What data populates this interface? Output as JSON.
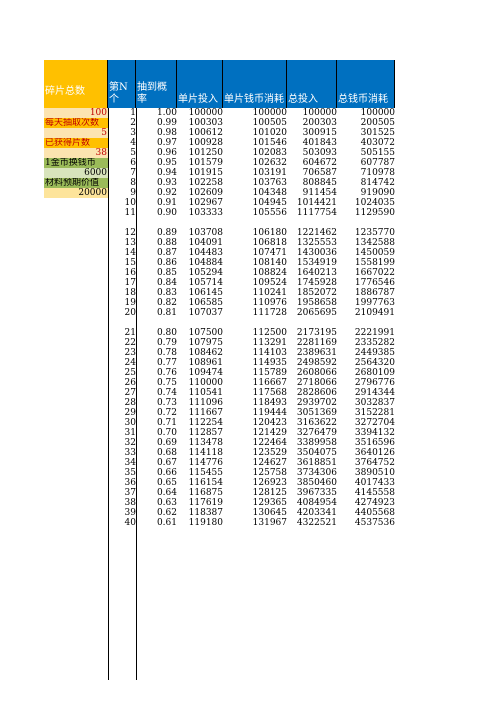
{
  "headers": {
    "pieces": "碎片总数",
    "n": "第N\n个",
    "prob": "抽到概\n率",
    "single": "单片投入",
    "single_coin": "单片钱币消耗",
    "total": "总投入",
    "total_coin": "总钱币消耗"
  },
  "params": [
    {
      "text": "100",
      "align": "r",
      "bg": "ltorange",
      "red": true
    },
    {
      "text": "每天抽取次数",
      "align": "l",
      "bg": "orange",
      "red": true
    },
    {
      "text": "5",
      "align": "r",
      "bg": "ltorange",
      "red": true
    },
    {
      "text": "已获得片数",
      "align": "l",
      "bg": "orange",
      "red": true
    },
    {
      "text": "38",
      "align": "r",
      "bg": "ltorange",
      "red": true
    },
    {
      "text": "1金币换钱币",
      "align": "l",
      "bg": "olive",
      "red": false
    },
    {
      "text": "6000",
      "align": "r",
      "bg": "ltgreen",
      "red": false
    },
    {
      "text": "材料预期价值",
      "align": "l",
      "bg": "olive",
      "red": false
    },
    {
      "text": "20000",
      "align": "r",
      "bg": "lgold",
      "red": false
    }
  ],
  "rows": [
    [
      "1",
      "1.00",
      "100000",
      "100000",
      "100000",
      "100000"
    ],
    [
      "2",
      "0.99",
      "100303",
      "100505",
      "200303",
      "200505"
    ],
    [
      "3",
      "0.98",
      "100612",
      "101020",
      "300915",
      "301525"
    ],
    [
      "4",
      "0.97",
      "100928",
      "101546",
      "401843",
      "403072"
    ],
    [
      "5",
      "0.96",
      "101250",
      "102083",
      "503093",
      "505155"
    ],
    [
      "6",
      "0.95",
      "101579",
      "102632",
      "604672",
      "607787"
    ],
    [
      "7",
      "0.94",
      "101915",
      "103191",
      "706587",
      "710978"
    ],
    [
      "8",
      "0.93",
      "102258",
      "103763",
      "808845",
      "814742"
    ],
    [
      "9",
      "0.92",
      "102609",
      "104348",
      "911454",
      "919090"
    ],
    [
      "10",
      "0.91",
      "102967",
      "104945",
      "1014421",
      "1024035"
    ],
    [
      "11",
      "0.90",
      "103333",
      "105556",
      "1117754",
      "1129590"
    ],
    [
      "12",
      "0.89",
      "103708",
      "106180",
      "1221462",
      "1235770"
    ],
    [
      "13",
      "0.88",
      "104091",
      "106818",
      "1325553",
      "1342588"
    ],
    [
      "14",
      "0.87",
      "104483",
      "107471",
      "1430036",
      "1450059"
    ],
    [
      "15",
      "0.86",
      "104884",
      "108140",
      "1534919",
      "1558199"
    ],
    [
      "16",
      "0.85",
      "105294",
      "108824",
      "1640213",
      "1667022"
    ],
    [
      "17",
      "0.84",
      "105714",
      "109524",
      "1745928",
      "1776546"
    ],
    [
      "18",
      "0.83",
      "106145",
      "110241",
      "1852072",
      "1886787"
    ],
    [
      "19",
      "0.82",
      "106585",
      "110976",
      "1958658",
      "1997763"
    ],
    [
      "20",
      "0.81",
      "107037",
      "111728",
      "2065695",
      "2109491"
    ],
    [
      "21",
      "0.80",
      "107500",
      "112500",
      "2173195",
      "2221991"
    ],
    [
      "22",
      "0.79",
      "107975",
      "113291",
      "2281169",
      "2335282"
    ],
    [
      "23",
      "0.78",
      "108462",
      "114103",
      "2389631",
      "2449385"
    ],
    [
      "24",
      "0.77",
      "108961",
      "114935",
      "2498592",
      "2564320"
    ],
    [
      "25",
      "0.76",
      "109474",
      "115789",
      "2608066",
      "2680109"
    ],
    [
      "26",
      "0.75",
      "110000",
      "116667",
      "2718066",
      "2796776"
    ],
    [
      "27",
      "0.74",
      "110541",
      "117568",
      "2828606",
      "2914344"
    ],
    [
      "28",
      "0.73",
      "111096",
      "118493",
      "2939702",
      "3032837"
    ],
    [
      "29",
      "0.72",
      "111667",
      "119444",
      "3051369",
      "3152281"
    ],
    [
      "30",
      "0.71",
      "112254",
      "120423",
      "3163622",
      "3272704"
    ],
    [
      "31",
      "0.70",
      "112857",
      "121429",
      "3276479",
      "3394132"
    ],
    [
      "32",
      "0.69",
      "113478",
      "122464",
      "3389958",
      "3516596"
    ],
    [
      "33",
      "0.68",
      "114118",
      "123529",
      "3504075",
      "3640126"
    ],
    [
      "34",
      "0.67",
      "114776",
      "124627",
      "3618851",
      "3764752"
    ],
    [
      "35",
      "0.66",
      "115455",
      "125758",
      "3734306",
      "3890510"
    ],
    [
      "36",
      "0.65",
      "116154",
      "126923",
      "3850460",
      "4017433"
    ],
    [
      "37",
      "0.64",
      "116875",
      "128125",
      "3967335",
      "4145558"
    ],
    [
      "38",
      "0.63",
      "117619",
      "129365",
      "4084954",
      "4274923"
    ],
    [
      "39",
      "0.62",
      "118387",
      "130645",
      "4203341",
      "4405568"
    ],
    [
      "40",
      "0.61",
      "119180",
      "131967",
      "4322521",
      "4537536"
    ]
  ]
}
